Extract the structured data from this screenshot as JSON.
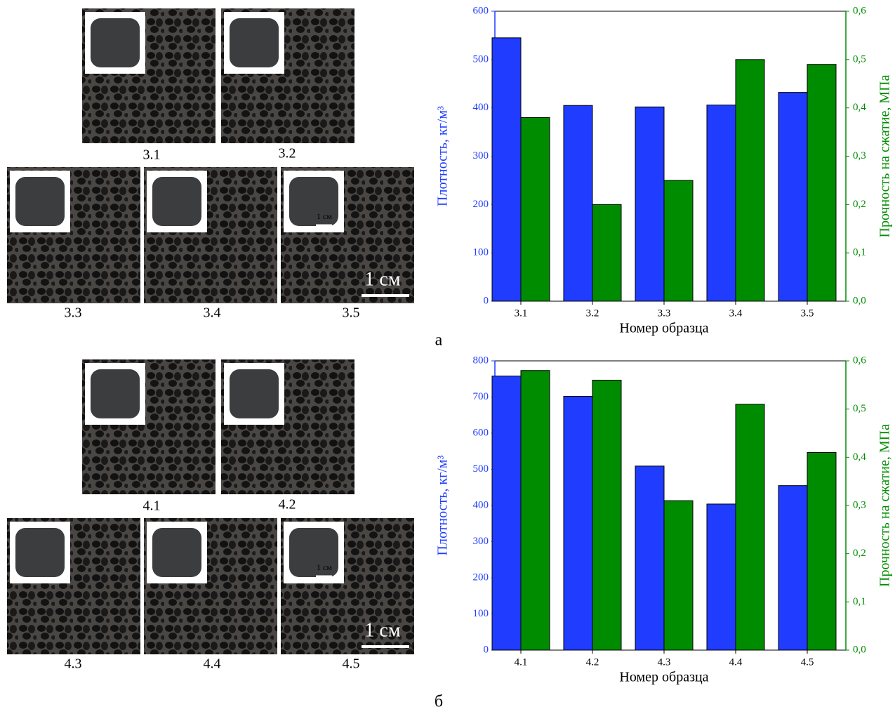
{
  "photos": [
    {
      "labels": [
        "3.1",
        "3.2",
        "3.3",
        "3.4",
        "3.5"
      ],
      "scale_bar": "1 см",
      "inset_scale_bar": "1 см"
    },
    {
      "labels": [
        "4.1",
        "4.2",
        "4.3",
        "4.4",
        "4.5"
      ],
      "scale_bar": "1 см",
      "inset_scale_bar": "1 см"
    }
  ],
  "chart_data": [
    {
      "type": "bar",
      "panel_label": "а",
      "x_label": "Номер образца",
      "y_label": "Плотность, кг/м³",
      "y2_label": "Прочность на сжатие, МПа",
      "categories": [
        "3.1",
        "3.2",
        "3.3",
        "3.4",
        "3.5"
      ],
      "series": [
        {
          "color": "#1f3cff",
          "values": [
            545,
            405,
            402,
            406,
            432
          ]
        },
        {
          "color": "#008c00",
          "axis": "y2",
          "values": [
            0.38,
            0.2,
            0.25,
            0.5,
            0.49
          ]
        }
      ],
      "ylim": [
        0,
        600
      ],
      "yticks": [
        0,
        100,
        200,
        300,
        400,
        500,
        600
      ],
      "y2lim": [
        0,
        0.6
      ],
      "y2ticks": [
        {
          "value": 0,
          "label": "0,0"
        },
        {
          "value": 0.1,
          "label": "0,1"
        },
        {
          "value": 0.2,
          "label": "0,2"
        },
        {
          "value": 0.3,
          "label": "0,3"
        },
        {
          "value": 0.4,
          "label": "0,4"
        },
        {
          "value": 0.5,
          "label": "0,5"
        },
        {
          "value": 0.6,
          "label": "0,6"
        }
      ]
    },
    {
      "type": "bar",
      "panel_label": "б",
      "x_label": "Номер образца",
      "y_label": "Плотность, кг/м³",
      "y2_label": "Прочность на сжатие, МПа",
      "categories": [
        "4.1",
        "4.2",
        "4.3",
        "4.4",
        "4.5"
      ],
      "series": [
        {
          "color": "#1f3cff",
          "values": [
            758,
            702,
            509,
            404,
            455
          ]
        },
        {
          "color": "#008c00",
          "axis": "y2",
          "values": [
            0.58,
            0.56,
            0.31,
            0.51,
            0.41
          ]
        }
      ],
      "ylim": [
        0,
        800
      ],
      "yticks": [
        0,
        100,
        200,
        300,
        400,
        500,
        600,
        700,
        800
      ],
      "y2lim": [
        0,
        0.6
      ],
      "y2ticks": [
        {
          "value": 0,
          "label": "0,0"
        },
        {
          "value": 0.1,
          "label": "0,1"
        },
        {
          "value": 0.2,
          "label": "0,2"
        },
        {
          "value": 0.3,
          "label": "0,3"
        },
        {
          "value": 0.4,
          "label": "0,4"
        },
        {
          "value": 0.5,
          "label": "0,5"
        },
        {
          "value": 0.6,
          "label": "0,6"
        }
      ]
    }
  ]
}
